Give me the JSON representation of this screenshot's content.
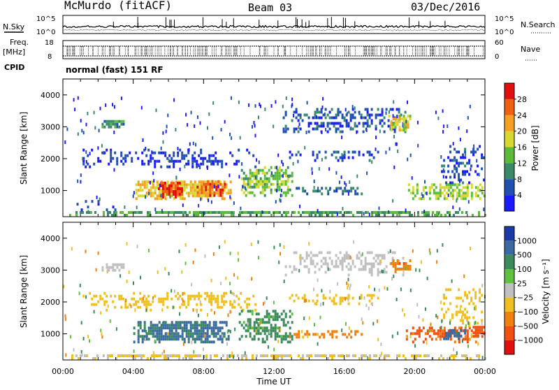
{
  "header": {
    "station": "McMurdo (fitACF)",
    "beam": "Beam 03",
    "date": "03/Dec/2016"
  },
  "status_panels": {
    "nsky_label": "N.Sky",
    "nsearch_label": "N.Search",
    "freq_label_line1": "Freq.",
    "freq_label_line2": "[MHz]",
    "nave_label": "Nave",
    "cpid_label": "CPID",
    "cpid_value": "normal (fast) 151 RF",
    "noise_left_ticks": [
      "10^5",
      "10^0"
    ],
    "noise_right_ticks": [
      "10^5",
      "10^0"
    ],
    "freq_left_ticks": [
      "18",
      "8"
    ],
    "freq_right_ticks": [
      "60",
      "0"
    ]
  },
  "chart_data": [
    {
      "type": "heatmap",
      "panel": "power",
      "ylabel": "Slant Range [km]",
      "xlabel": "",
      "xlim": [
        "00:00",
        "24:00"
      ],
      "ylim": [
        180,
        4500
      ],
      "y_ticks": [
        "1000",
        "2000",
        "3000",
        "4000"
      ],
      "colorbar": {
        "label": "Power [dB]",
        "ticks": [
          "4",
          "8",
          "12",
          "16",
          "20",
          "24",
          "28"
        ],
        "colors": [
          "#1a1aff",
          "#2050b0",
          "#3a8a6a",
          "#5dbb3a",
          "#d8d830",
          "#f5a020",
          "#f06010",
          "#e01010"
        ]
      },
      "echo_regions": [
        {
          "t0": 0.0,
          "t1": 24.0,
          "r0": 180,
          "r1": 300,
          "value": 12,
          "density": 0.85
        },
        {
          "t0": 0.3,
          "t1": 3.0,
          "r0": 350,
          "r1": 700,
          "value": 4,
          "density": 0.2
        },
        {
          "t0": 2.2,
          "t1": 3.5,
          "r0": 2950,
          "r1": 3200,
          "value": 10,
          "density": 0.8
        },
        {
          "t0": 1.0,
          "t1": 11.0,
          "r0": 1700,
          "r1": 2250,
          "value": 4,
          "density": 0.35
        },
        {
          "t0": 4.0,
          "t1": 9.5,
          "r0": 700,
          "r1": 1300,
          "value": 20,
          "density": 0.9
        },
        {
          "t0": 5.4,
          "t1": 6.8,
          "r0": 750,
          "r1": 1200,
          "value": 28,
          "density": 0.8
        },
        {
          "t0": 7.6,
          "t1": 9.2,
          "r0": 800,
          "r1": 1250,
          "value": 26,
          "density": 0.8
        },
        {
          "t0": 10.0,
          "t1": 13.0,
          "r0": 800,
          "r1": 1700,
          "value": 14,
          "density": 0.7
        },
        {
          "t0": 13.0,
          "t1": 17.0,
          "r0": 850,
          "r1": 1050,
          "value": 8,
          "density": 0.6
        },
        {
          "t0": 12.5,
          "t1": 19.5,
          "r0": 2800,
          "r1": 3550,
          "value": 6,
          "density": 0.45
        },
        {
          "t0": 12.5,
          "t1": 18.0,
          "r0": 1900,
          "r1": 2200,
          "value": 5,
          "density": 0.3
        },
        {
          "t0": 18.5,
          "t1": 19.8,
          "r0": 2850,
          "r1": 3300,
          "value": 18,
          "density": 0.7
        },
        {
          "t0": 19.5,
          "t1": 24.0,
          "r0": 700,
          "r1": 1200,
          "value": 16,
          "density": 0.65
        },
        {
          "t0": 21.5,
          "t1": 24.0,
          "r0": 1200,
          "r1": 2400,
          "value": 5,
          "density": 0.3
        }
      ]
    },
    {
      "type": "heatmap",
      "panel": "velocity",
      "ylabel": "Slant Range [km]",
      "xlabel": "Time UT",
      "x_ticks": [
        "00:00",
        "04:00",
        "08:00",
        "12:00",
        "16:00",
        "20:00",
        "00:00"
      ],
      "xlim": [
        "00:00",
        "24:00"
      ],
      "ylim": [
        180,
        4500
      ],
      "y_ticks": [
        "1000",
        "2000",
        "3000",
        "4000"
      ],
      "colorbar": {
        "label": "Velocity [m s⁻¹]",
        "ticks": [
          "1000",
          "500",
          "100",
          "25",
          "−25",
          "−100",
          "−500",
          "−1000"
        ],
        "colors": [
          "#1a3aa8",
          "#3a6aa0",
          "#3a8a5a",
          "#60c040",
          "#c0c0c0",
          "#f0c020",
          "#f08010",
          "#f05010",
          "#e01010"
        ]
      },
      "echo_regions": [
        {
          "t0": 0.0,
          "t1": 24.0,
          "r0": 180,
          "r1": 300,
          "value": -25,
          "density": 0.7
        },
        {
          "t0": 2.2,
          "t1": 3.5,
          "r0": 2950,
          "r1": 3200,
          "value": 0,
          "density": 0.8
        },
        {
          "t0": 1.0,
          "t1": 11.0,
          "r0": 1700,
          "r1": 2250,
          "value": -60,
          "density": 0.35
        },
        {
          "t0": 4.0,
          "t1": 9.5,
          "r0": 700,
          "r1": 1400,
          "value": 300,
          "density": 0.9
        },
        {
          "t0": 10.0,
          "t1": 13.0,
          "r0": 700,
          "r1": 1700,
          "value": 90,
          "density": 0.7
        },
        {
          "t0": 13.0,
          "t1": 17.0,
          "r0": 850,
          "r1": 1050,
          "value": -150,
          "density": 0.55
        },
        {
          "t0": 12.5,
          "t1": 19.5,
          "r0": 2800,
          "r1": 3550,
          "value": 0,
          "density": 0.4
        },
        {
          "t0": 12.5,
          "t1": 18.0,
          "r0": 1900,
          "r1": 2200,
          "value": -60,
          "density": 0.35
        },
        {
          "t0": 18.5,
          "t1": 19.8,
          "r0": 2900,
          "r1": 3300,
          "value": -200,
          "density": 0.7
        },
        {
          "t0": 19.5,
          "t1": 24.0,
          "r0": 700,
          "r1": 1200,
          "value": -300,
          "density": 0.6
        },
        {
          "t0": 21.5,
          "t1": 23.0,
          "r0": 800,
          "r1": 1100,
          "value": 400,
          "density": 0.7
        },
        {
          "t0": 23.3,
          "t1": 24.0,
          "r0": 900,
          "r1": 1250,
          "value": -400,
          "density": 0.9
        },
        {
          "t0": 21.5,
          "t1": 24.0,
          "r0": 1200,
          "r1": 2400,
          "value": -60,
          "density": 0.3
        }
      ]
    }
  ]
}
